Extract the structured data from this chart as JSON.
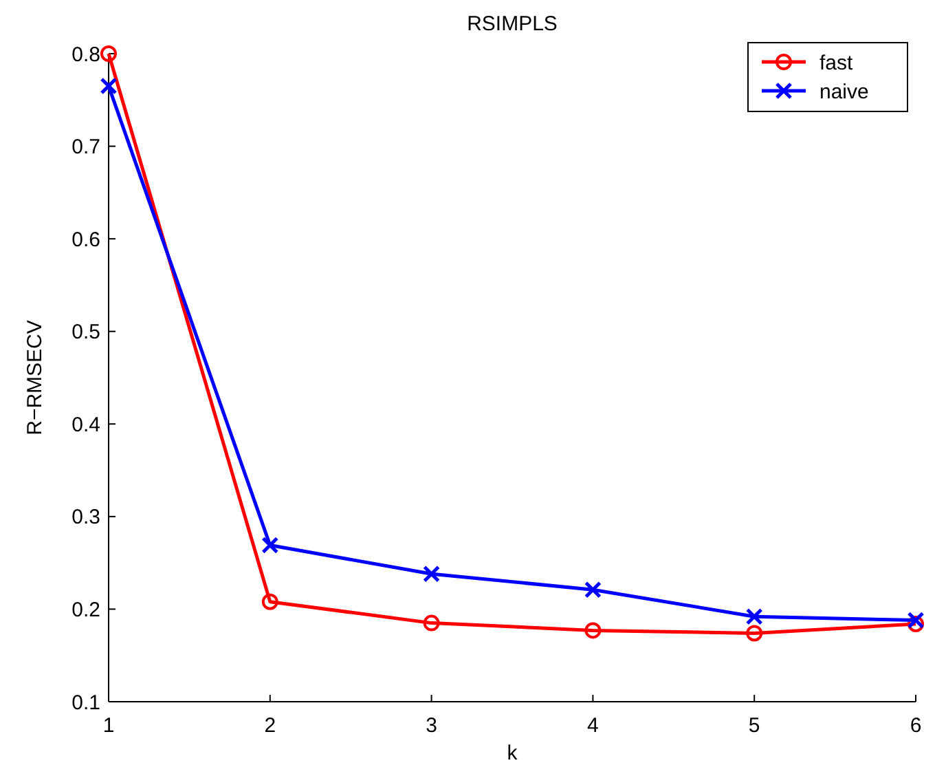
{
  "chart_data": {
    "type": "line",
    "title": "RSIMPLS",
    "xlabel": "k",
    "ylabel": "R−RMSECV",
    "x": [
      1,
      2,
      3,
      4,
      5,
      6
    ],
    "xlim": [
      1,
      6
    ],
    "xticks": [
      1,
      2,
      3,
      4,
      5,
      6
    ],
    "ylim": [
      0.1,
      0.8
    ],
    "yticks": [
      0.1,
      0.2,
      0.3,
      0.4,
      0.5,
      0.6,
      0.7,
      0.8
    ],
    "series": [
      {
        "name": "fast",
        "color": "#ff0000",
        "marker": "circle",
        "values": [
          0.8,
          0.208,
          0.185,
          0.177,
          0.174,
          0.184
        ]
      },
      {
        "name": "naive",
        "color": "#0000ff",
        "marker": "cross",
        "values": [
          0.765,
          0.269,
          0.238,
          0.221,
          0.192,
          0.188
        ]
      }
    ],
    "legend": "top right",
    "grid": false,
    "line_style": "solid"
  }
}
